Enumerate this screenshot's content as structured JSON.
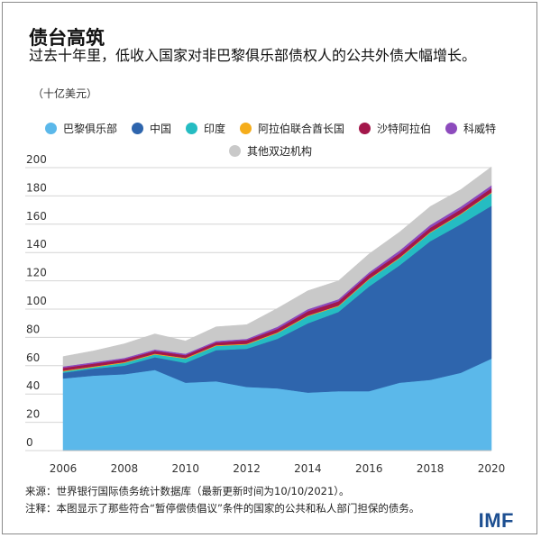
{
  "title": "债台高筑",
  "subtitle": "过去十年里，低收入国家对非巴黎俱乐部债权人的公共外债大幅增长。",
  "unit": "（十亿美元）",
  "source": "来源：世界银行国际债务统计数据库（最新更新时间为10/10/2021）。",
  "note": "注释：本图显示了那些符合“暂停偿债倡议”条件的国家的公共和私人部门担保的债务。",
  "logo": "IMF",
  "chart_data": {
    "type": "area",
    "stacked": true,
    "x": [
      2006,
      2007,
      2008,
      2009,
      2010,
      2011,
      2012,
      2013,
      2014,
      2015,
      2016,
      2017,
      2018,
      2019,
      2020
    ],
    "xticks": [
      "2006",
      "2008",
      "2010",
      "2012",
      "2014",
      "2016",
      "2018",
      "2020"
    ],
    "yticks": [
      "0",
      "20",
      "40",
      "60",
      "80",
      "100",
      "120",
      "140",
      "160",
      "180",
      "200"
    ],
    "ylim": [
      0,
      200
    ],
    "grid": true,
    "legend_position": "top",
    "series": [
      {
        "name": "巴黎俱乐部",
        "color": "#5bb8ea",
        "values": [
          51,
          53,
          54,
          57,
          48,
          49,
          45,
          44,
          41,
          42,
          42,
          48,
          50,
          55,
          65
        ]
      },
      {
        "name": "中国",
        "color": "#2e65ad",
        "values": [
          4,
          5,
          6,
          9,
          14,
          22,
          27,
          35,
          49,
          56,
          74,
          83,
          98,
          105,
          108
        ]
      },
      {
        "name": "印度",
        "color": "#25bcc2",
        "values": [
          1,
          1,
          2,
          2,
          3,
          3,
          3,
          4,
          5,
          4,
          5,
          5,
          6,
          7,
          9
        ]
      },
      {
        "name": "阿拉伯联合酋长国",
        "color": "#f5ad1b",
        "values": [
          0.5,
          0.5,
          0.5,
          0.5,
          0.5,
          0.5,
          0.5,
          0.5,
          0.5,
          0.5,
          0.5,
          0.5,
          0.5,
          0.5,
          0.5
        ]
      },
      {
        "name": "沙特阿拉伯",
        "color": "#a3174b",
        "values": [
          2,
          2,
          2,
          2,
          2,
          2,
          2.5,
          2.5,
          3,
          3,
          3,
          3,
          3,
          3,
          3
        ]
      },
      {
        "name": "科威特",
        "color": "#8d4bbd",
        "values": [
          1,
          1,
          1,
          1,
          1,
          1,
          1,
          1.5,
          1.5,
          1.5,
          1.5,
          2,
          2,
          2,
          2
        ]
      },
      {
        "name": "其他双边机构",
        "color": "#c9c9c9",
        "values": [
          7,
          8,
          10,
          11,
          9,
          10,
          10,
          13,
          13,
          13,
          13,
          13,
          13,
          12,
          13
        ]
      }
    ]
  }
}
